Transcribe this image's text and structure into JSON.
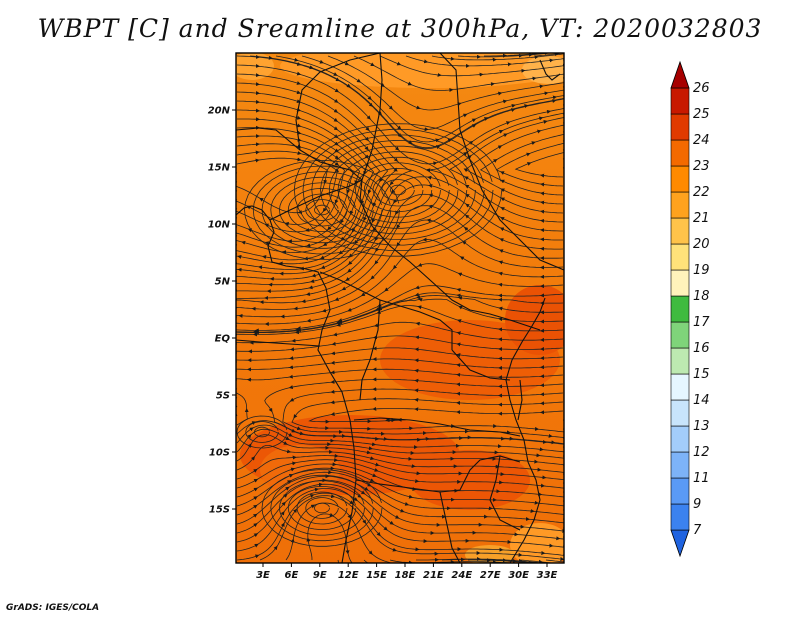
{
  "title": "WBPT [C] and Sreamline at 300hPa, VT: 2020032803",
  "credit": "GrADS: IGES/COLA",
  "map": {
    "lat_labels": [
      "20N",
      "15N",
      "10N",
      "5N",
      "EQ",
      "5S",
      "10S",
      "15S"
    ],
    "lon_labels": [
      "3E",
      "6E",
      "9E",
      "12E",
      "15E",
      "18E",
      "21E",
      "24E",
      "27E",
      "30E",
      "33E"
    ]
  },
  "colorbar": {
    "levels": [
      "7",
      "9",
      "11",
      "12",
      "13",
      "14",
      "15",
      "16",
      "17",
      "18",
      "19",
      "20",
      "21",
      "22",
      "23",
      "24",
      "25",
      "26"
    ],
    "colors": [
      "#1f63e0",
      "#3b82ef",
      "#5a9af5",
      "#7db3f8",
      "#a3cdfb",
      "#c8e4fc",
      "#e6f6ff",
      "#bde9b1",
      "#7fd47a",
      "#3fbb3f",
      "#fff3bb",
      "#ffe27a",
      "#ffc34a",
      "#ffa21e",
      "#ff8a00",
      "#f46a00",
      "#e03a00",
      "#c81800",
      "#a60000"
    ]
  }
}
